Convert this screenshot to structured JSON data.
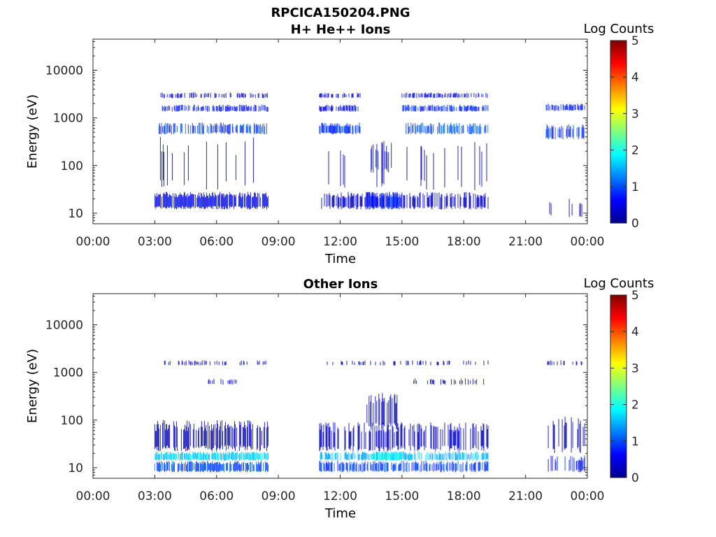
{
  "figure": {
    "filename": "RPCICA150204.PNG"
  },
  "colorbar": {
    "title": "Log Counts",
    "range": [
      0,
      5
    ],
    "ticks": [
      "0",
      "1",
      "2",
      "3",
      "4",
      "5"
    ],
    "colormap": "jet"
  },
  "chart_data": [
    {
      "type": "heatmap",
      "title": "H+ He++ Ions",
      "xlabel": "Time",
      "ylabel": "Energy (eV)",
      "yscale": "log",
      "ylim": [
        6,
        45000
      ],
      "xlim_hours": [
        0,
        24
      ],
      "xticks": [
        "00:00",
        "03:00",
        "06:00",
        "09:00",
        "12:00",
        "15:00",
        "18:00",
        "21:00",
        "00:00"
      ],
      "yticks": [
        {
          "value": 10,
          "label": "10"
        },
        {
          "value": 100,
          "label": "100"
        },
        {
          "value": 1000,
          "label": "1000"
        },
        {
          "value": 10000,
          "label": "10000"
        }
      ],
      "bands": [
        {
          "t": [
            3.0,
            8.5
          ],
          "e": [
            12,
            28
          ],
          "level": 0.55,
          "density": 0.85
        },
        {
          "t": [
            11.0,
            19.2
          ],
          "e": [
            12,
            28
          ],
          "level": 0.35,
          "density": 0.55
        },
        {
          "t": [
            13.2,
            15.0
          ],
          "e": [
            12,
            28
          ],
          "level": 0.75,
          "density": 0.9
        },
        {
          "t": [
            22.0,
            23.9
          ],
          "e": [
            8,
            20
          ],
          "level": 0.2,
          "density": 0.2
        },
        {
          "t": [
            3.2,
            8.5
          ],
          "e": [
            450,
            800
          ],
          "level": 0.9,
          "density": 0.6
        },
        {
          "t": [
            11.0,
            13.0
          ],
          "e": [
            450,
            800
          ],
          "level": 0.85,
          "density": 0.75
        },
        {
          "t": [
            15.2,
            19.2
          ],
          "e": [
            450,
            800
          ],
          "level": 1.0,
          "density": 0.7
        },
        {
          "t": [
            22.0,
            23.9
          ],
          "e": [
            350,
            750
          ],
          "level": 0.8,
          "density": 0.5
        },
        {
          "t": [
            3.3,
            8.5
          ],
          "e": [
            1350,
            1900
          ],
          "level": 0.65,
          "density": 0.6
        },
        {
          "t": [
            11.0,
            13.0
          ],
          "e": [
            1350,
            1900
          ],
          "level": 0.6,
          "density": 0.6
        },
        {
          "t": [
            15.0,
            19.2
          ],
          "e": [
            1350,
            1900
          ],
          "level": 0.8,
          "density": 0.7
        },
        {
          "t": [
            22.0,
            23.9
          ],
          "e": [
            1400,
            2000
          ],
          "level": 0.7,
          "density": 0.6
        },
        {
          "t": [
            3.3,
            8.5
          ],
          "e": [
            2600,
            3400
          ],
          "level": 0.45,
          "density": 0.45
        },
        {
          "t": [
            11.0,
            13.0
          ],
          "e": [
            2600,
            3400
          ],
          "level": 0.4,
          "density": 0.35
        },
        {
          "t": [
            15.0,
            19.2
          ],
          "e": [
            2600,
            3400
          ],
          "level": 0.55,
          "density": 0.45
        },
        {
          "t": [
            13.5,
            14.5
          ],
          "e": [
            70,
            300
          ],
          "level": 0.5,
          "density": 0.35
        },
        {
          "t": [
            3.0,
            8.5
          ],
          "e": [
            30,
            400
          ],
          "level": 0.2,
          "density": 0.06
        },
        {
          "t": [
            11.0,
            19.2
          ],
          "e": [
            30,
            400
          ],
          "level": 0.2,
          "density": 0.05
        }
      ]
    },
    {
      "type": "heatmap",
      "title": "Other Ions",
      "xlabel": "Time",
      "ylabel": "Energy (eV)",
      "yscale": "log",
      "ylim": [
        6,
        45000
      ],
      "xlim_hours": [
        0,
        24
      ],
      "xticks": [
        "00:00",
        "03:00",
        "06:00",
        "09:00",
        "12:00",
        "15:00",
        "18:00",
        "21:00",
        "00:00"
      ],
      "yticks": [
        {
          "value": 10,
          "label": "10"
        },
        {
          "value": 100,
          "label": "100"
        },
        {
          "value": 1000,
          "label": "1000"
        },
        {
          "value": 10000,
          "label": "10000"
        }
      ],
      "bands": [
        {
          "t": [
            3.0,
            8.5
          ],
          "e": [
            14,
            22
          ],
          "level": 1.7,
          "density": 0.9
        },
        {
          "t": [
            11.0,
            19.2
          ],
          "e": [
            14,
            22
          ],
          "level": 1.5,
          "density": 0.6
        },
        {
          "t": [
            13.5,
            15.0
          ],
          "e": [
            14,
            22
          ],
          "level": 1.9,
          "density": 0.95
        },
        {
          "t": [
            3.0,
            8.5
          ],
          "e": [
            8,
            14
          ],
          "level": 1.0,
          "density": 0.8
        },
        {
          "t": [
            11.0,
            19.2
          ],
          "e": [
            8,
            14
          ],
          "level": 0.9,
          "density": 0.6
        },
        {
          "t": [
            3.0,
            8.5
          ],
          "e": [
            22,
            100
          ],
          "level": 0.35,
          "density": 0.6
        },
        {
          "t": [
            11.0,
            19.2
          ],
          "e": [
            22,
            90
          ],
          "level": 0.3,
          "density": 0.45
        },
        {
          "t": [
            13.3,
            14.8
          ],
          "e": [
            60,
            400
          ],
          "level": 0.25,
          "density": 0.55
        },
        {
          "t": [
            22.0,
            23.9
          ],
          "e": [
            8,
            18
          ],
          "level": 0.7,
          "density": 0.45
        },
        {
          "t": [
            22.0,
            23.9
          ],
          "e": [
            20,
            120
          ],
          "level": 0.3,
          "density": 0.3
        },
        {
          "t": [
            5.5,
            7.0
          ],
          "e": [
            550,
            750
          ],
          "level": 0.4,
          "density": 0.35
        },
        {
          "t": [
            15.5,
            19.2
          ],
          "e": [
            550,
            750
          ],
          "level": 0.4,
          "density": 0.3
        },
        {
          "t": [
            3.3,
            8.5
          ],
          "e": [
            1400,
            1800
          ],
          "level": 0.2,
          "density": 0.25
        },
        {
          "t": [
            11.0,
            19.2
          ],
          "e": [
            1400,
            1800
          ],
          "level": 0.2,
          "density": 0.2
        },
        {
          "t": [
            22.0,
            23.9
          ],
          "e": [
            1400,
            1800
          ],
          "level": 0.2,
          "density": 0.3
        }
      ]
    }
  ]
}
